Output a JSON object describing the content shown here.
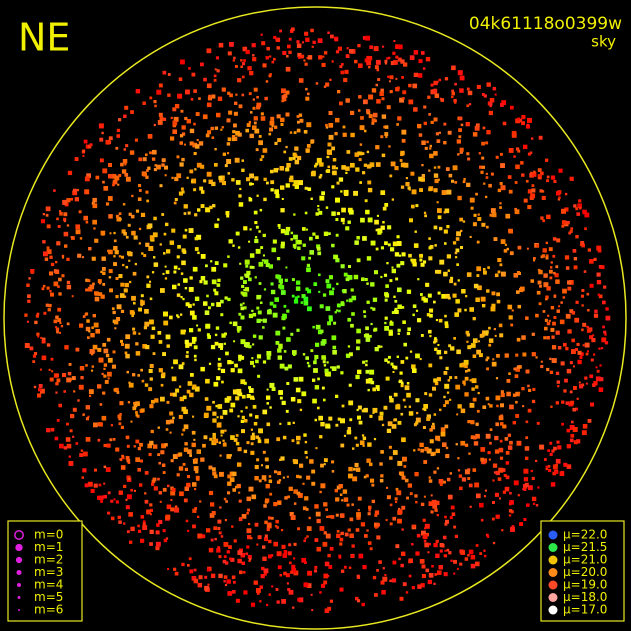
{
  "header": {
    "direction": "NE",
    "frame_id": "04k61118o0399w",
    "mode": "sky"
  },
  "magnitude_legend": [
    {
      "label": "m=0"
    },
    {
      "label": "m=1"
    },
    {
      "label": "m=2"
    },
    {
      "label": "m=3"
    },
    {
      "label": "m=4"
    },
    {
      "label": "m=5"
    },
    {
      "label": "m=6"
    }
  ],
  "brightness_legend": [
    {
      "label": "μ=22.0",
      "color": "#2a5cff"
    },
    {
      "label": "μ=21.5",
      "color": "#2ee84a"
    },
    {
      "label": "μ=21.0",
      "color": "#f2c400"
    },
    {
      "label": "μ=20.0",
      "color": "#ff8a1a"
    },
    {
      "label": "μ=19.0",
      "color": "#ff4a2a"
    },
    {
      "label": "μ=18.0",
      "color": "#ffa5a0"
    },
    {
      "label": "μ=17.0",
      "color": "#ffffff"
    }
  ]
}
